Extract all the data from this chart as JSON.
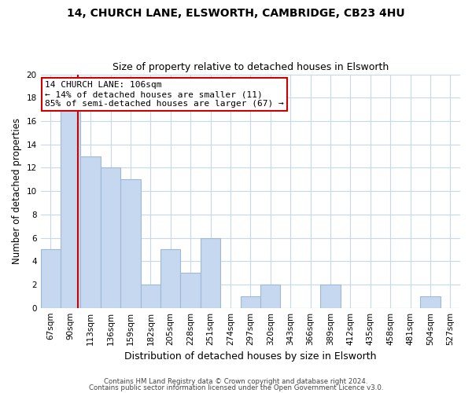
{
  "title_line1": "14, CHURCH LANE, ELSWORTH, CAMBRIDGE, CB23 4HU",
  "title_line2": "Size of property relative to detached houses in Elsworth",
  "xlabel": "Distribution of detached houses by size in Elsworth",
  "ylabel": "Number of detached properties",
  "bin_labels": [
    "67sqm",
    "90sqm",
    "113sqm",
    "136sqm",
    "159sqm",
    "182sqm",
    "205sqm",
    "228sqm",
    "251sqm",
    "274sqm",
    "297sqm",
    "320sqm",
    "343sqm",
    "366sqm",
    "389sqm",
    "412sqm",
    "435sqm",
    "458sqm",
    "481sqm",
    "504sqm",
    "527sqm"
  ],
  "bar_heights": [
    5,
    17,
    13,
    12,
    11,
    2,
    5,
    3,
    6,
    0,
    1,
    2,
    0,
    0,
    2,
    0,
    0,
    0,
    0,
    1,
    0
  ],
  "bar_color": "#c5d8f0",
  "bar_edge_color": "#a0b8d8",
  "vline_color": "#cc0000",
  "vline_x": 1.35,
  "annotation_title": "14 CHURCH LANE: 106sqm",
  "annotation_line1": "← 14% of detached houses are smaller (11)",
  "annotation_line2": "85% of semi-detached houses are larger (67) →",
  "annotation_box_color": "#ffffff",
  "annotation_box_edge_color": "#cc0000",
  "ylim": [
    0,
    20
  ],
  "yticks": [
    0,
    2,
    4,
    6,
    8,
    10,
    12,
    14,
    16,
    18,
    20
  ],
  "footer_line1": "Contains HM Land Registry data © Crown copyright and database right 2024.",
  "footer_line2": "Contains public sector information licensed under the Open Government Licence v3.0.",
  "bg_color": "#ffffff",
  "grid_color": "#c8d8e8",
  "title_fontsize": 10,
  "subtitle_fontsize": 9,
  "ylabel_fontsize": 8.5,
  "xlabel_fontsize": 9,
  "tick_fontsize": 7.5,
  "footer_fontsize": 6.2,
  "ann_fontsize": 8
}
